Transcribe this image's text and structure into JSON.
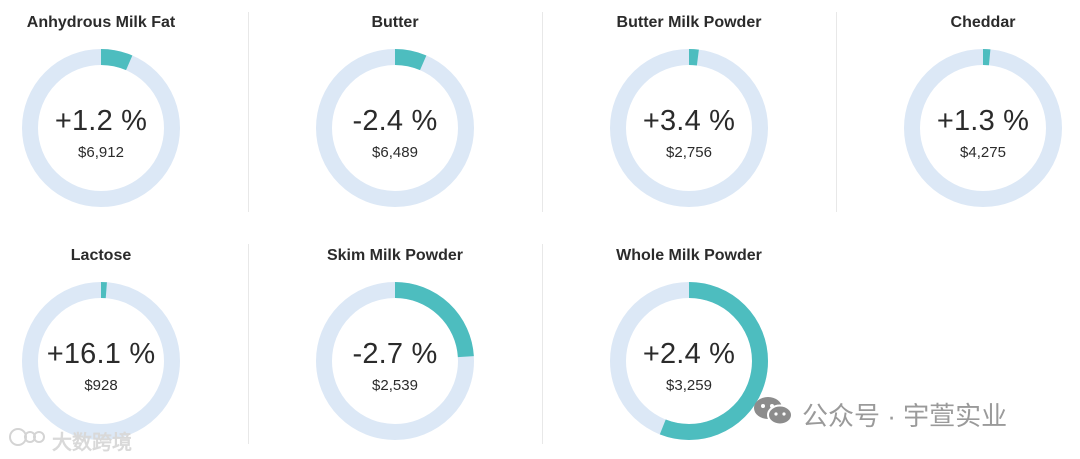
{
  "chart_data": [
    {
      "type": "pie",
      "title": "Anhydrous Milk Fat",
      "change_label": "+1.2 %",
      "price_label": "$6,912",
      "value": 1.2,
      "colors": {
        "fill": "#4dbdbf",
        "track": "#dce8f6"
      }
    },
    {
      "type": "pie",
      "title": "Butter",
      "change_label": "-2.4 %",
      "price_label": "$6,489",
      "value": -2.4,
      "colors": {
        "fill": "#4dbdbf",
        "track": "#dce8f6"
      }
    },
    {
      "type": "pie",
      "title": "Butter Milk Powder",
      "change_label": "+3.4 %",
      "price_label": "$2,756",
      "value": 3.4,
      "colors": {
        "fill": "#4dbdbf",
        "track": "#dce8f6"
      }
    },
    {
      "type": "pie",
      "title": "Cheddar",
      "change_label": "+1.3 %",
      "price_label": "$4,275",
      "value": 1.3,
      "colors": {
        "fill": "#4dbdbf",
        "track": "#dce8f6"
      }
    },
    {
      "type": "pie",
      "title": "Lactose",
      "change_label": "+16.1 %",
      "price_label": "$928",
      "value": 16.1,
      "colors": {
        "fill": "#4dbdbf",
        "track": "#dce8f6"
      }
    },
    {
      "type": "pie",
      "title": "Skim Milk Powder",
      "change_label": "-2.7 %",
      "price_label": "$2,539",
      "value": -2.7,
      "colors": {
        "fill": "#4dbdbf",
        "track": "#dce8f6"
      }
    },
    {
      "type": "pie",
      "title": "Whole Milk Powder",
      "change_label": "+2.4 %",
      "price_label": "$3,259",
      "value": 2.4,
      "colors": {
        "fill": "#4dbdbf",
        "track": "#dce8f6"
      }
    }
  ],
  "ring_fill_fractions": [
    0.065,
    0.065,
    0.02,
    0.015,
    0.012,
    0.24,
    0.56
  ],
  "watermarks": {
    "left_text": "大数跨境",
    "right_text": "公众号 · 宇萱实业"
  }
}
